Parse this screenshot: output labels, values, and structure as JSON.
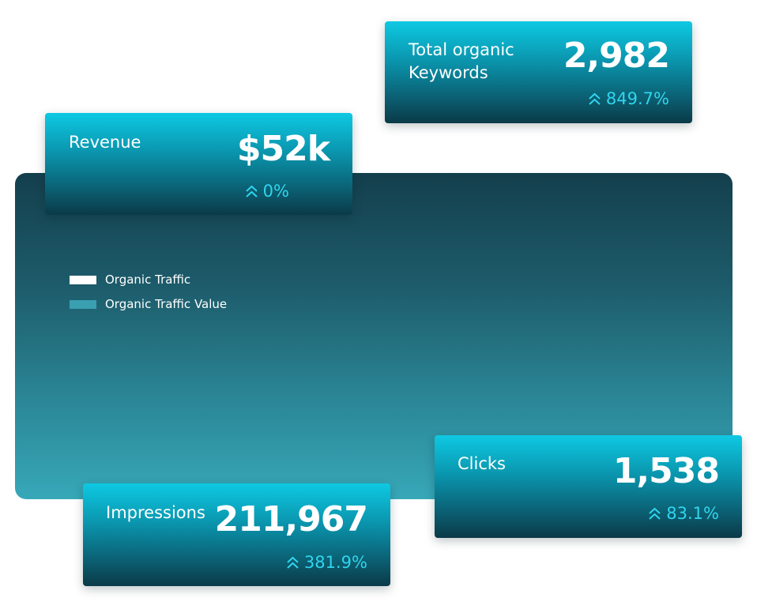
{
  "legend": [
    {
      "label": "Organic Traffic",
      "color": "#ffffff"
    },
    {
      "label": "Organic Traffic Value",
      "color": "#3a9fb0"
    }
  ],
  "cards": {
    "keywords": {
      "title": "Total organic\nKeywords",
      "value": "2,982",
      "change": "849.7%"
    },
    "revenue": {
      "title": "Revenue",
      "value": "$52k",
      "change": "0%"
    },
    "clicks": {
      "title": "Clicks",
      "value": "1,538",
      "change": "83.1%"
    },
    "impressions": {
      "title": "Impressions",
      "value": "211,967",
      "change": "381.9%"
    }
  },
  "colors": {
    "accent": "#2fd5ee",
    "card_top": "#0ec9e3",
    "card_bottom": "#0a3a48",
    "panel_top": "#143f4d",
    "panel_bottom": "#37a8b8"
  },
  "icons": {
    "change": "double-chevron-up-icon"
  }
}
